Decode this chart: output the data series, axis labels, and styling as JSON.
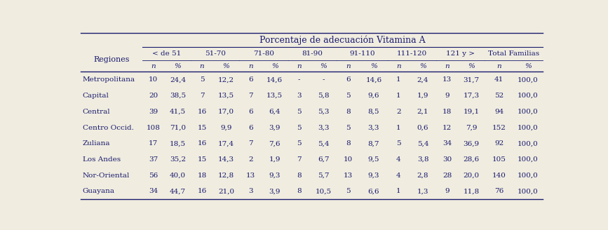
{
  "title": "Porcentaje de adecuación Vitamina A",
  "col_groups": [
    "< de 51",
    "51-70",
    "71-80",
    "81-90",
    "91-110",
    "111-120",
    "121 y >",
    "Total Familias"
  ],
  "subheaders": [
    "n",
    "%",
    "n",
    "%",
    "n",
    "%",
    "n",
    "%",
    "n",
    "%",
    "n",
    "%",
    "n",
    "%",
    "n",
    "%"
  ],
  "row_header": "Regiones",
  "regions": [
    "Metropolitana",
    "Capital",
    "Central",
    "Centro Occid.",
    "Zuliana",
    "Los Andes",
    "Nor-Oriental",
    "Guayana"
  ],
  "data": [
    [
      "10",
      "24,4",
      "5",
      "12,2",
      "6",
      "14,6",
      "-",
      "-",
      "6",
      "14,6",
      "1",
      "2,4",
      "13",
      "31,7",
      "41",
      "100,0"
    ],
    [
      "20",
      "38,5",
      "7",
      "13,5",
      "7",
      "13,5",
      "3",
      "5,8",
      "5",
      "9,6",
      "1",
      "1,9",
      "9",
      "17,3",
      "52",
      "100,0"
    ],
    [
      "39",
      "41,5",
      "16",
      "17,0",
      "6",
      "6,4",
      "5",
      "5,3",
      "8",
      "8,5",
      "2",
      "2,1",
      "18",
      "19,1",
      "94",
      "100,0"
    ],
    [
      "108",
      "71,0",
      "15",
      "9,9",
      "6",
      "3,9",
      "5",
      "3,3",
      "5",
      "3,3",
      "1",
      "0,6",
      "12",
      "7,9",
      "152",
      "100,0"
    ],
    [
      "17",
      "18,5",
      "16",
      "17,4",
      "7",
      "7,6",
      "5",
      "5,4",
      "8",
      "8,7",
      "5",
      "5,4",
      "34",
      "36,9",
      "92",
      "100,0"
    ],
    [
      "37",
      "35,2",
      "15",
      "14,3",
      "2",
      "1,9",
      "7",
      "6,7",
      "10",
      "9,5",
      "4",
      "3,8",
      "30",
      "28,6",
      "105",
      "100,0"
    ],
    [
      "56",
      "40,0",
      "18",
      "12,8",
      "13",
      "9,3",
      "8",
      "5,7",
      "13",
      "9,3",
      "4",
      "2,8",
      "28",
      "20,0",
      "140",
      "100,0"
    ],
    [
      "34",
      "44,7",
      "16",
      "21,0",
      "3",
      "3,9",
      "8",
      "10,5",
      "5",
      "6,6",
      "1",
      "1,3",
      "9",
      "11,8",
      "76",
      "100,0"
    ]
  ],
  "bg_color": "#f0ede0",
  "text_color": "#1a1a6e",
  "header_color": "#1a1a6e",
  "line_color": "#1a1a6e",
  "font_size": 7.5,
  "title_font_size": 9
}
